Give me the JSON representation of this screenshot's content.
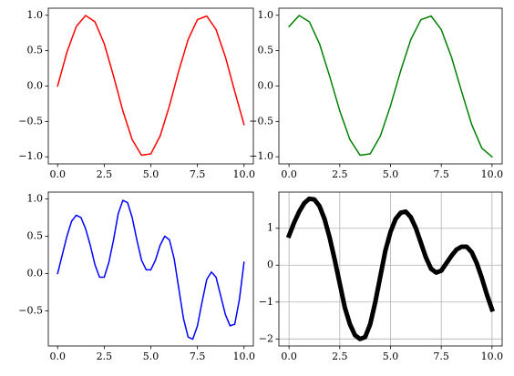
{
  "chart_data": [
    {
      "type": "line",
      "x": [
        0,
        0.5,
        1,
        1.5,
        2,
        2.5,
        3,
        3.5,
        4,
        4.5,
        5,
        5.5,
        6,
        6.5,
        7,
        7.5,
        8,
        8.5,
        9,
        9.5,
        10
      ],
      "series": [
        {
          "color": "#ff0000",
          "linewidth": 1.5,
          "values": [
            0,
            0.479,
            0.841,
            0.997,
            0.909,
            0.598,
            0.141,
            -0.351,
            -0.757,
            -0.978,
            -0.959,
            -0.706,
            -0.279,
            0.215,
            0.657,
            0.938,
            0.989,
            0.798,
            0.412,
            -0.075,
            -0.544
          ]
        }
      ],
      "xlim": [
        -0.5,
        10.5
      ],
      "ylim": [
        -1.1,
        1.1
      ],
      "xticks": [
        {
          "value": 0,
          "label": "0.0"
        },
        2.5,
        {
          "value": 5,
          "label": "5.0"
        },
        7.5,
        {
          "value": 10,
          "label": "10.0"
        }
      ],
      "yticks": [
        {
          "value": -1,
          "label": "−1.0"
        },
        {
          "value": -0.5,
          "label": "−0.5"
        },
        {
          "value": 0,
          "label": "0.0"
        },
        0.5,
        {
          "value": 1,
          "label": "1.0"
        }
      ],
      "grid": false
    },
    {
      "type": "line",
      "x": [
        0,
        0.5,
        1,
        1.5,
        2,
        2.5,
        3,
        3.5,
        4,
        4.5,
        5,
        5.5,
        6,
        6.5,
        7,
        7.5,
        8,
        8.5,
        9,
        9.5,
        10
      ],
      "series": [
        {
          "color": "#008000",
          "linewidth": 1.5,
          "values": [
            0.841,
            0.997,
            0.909,
            0.598,
            0.141,
            -0.351,
            -0.757,
            -0.978,
            -0.959,
            -0.706,
            -0.279,
            0.215,
            0.657,
            0.938,
            0.989,
            0.798,
            0.412,
            -0.075,
            -0.544,
            -0.879,
            -1.0
          ]
        }
      ],
      "xlim": [
        -0.5,
        10.5
      ],
      "ylim": [
        -1.1,
        1.1
      ],
      "xticks": [
        {
          "value": 0,
          "label": "0.0"
        },
        2.5,
        {
          "value": 5,
          "label": "5.0"
        },
        7.5,
        {
          "value": 10,
          "label": "10.0"
        }
      ],
      "yticks": [
        {
          "value": -1,
          "label": "−1.0"
        },
        {
          "value": -0.5,
          "label": "−0.5"
        },
        {
          "value": 0,
          "label": "0.0"
        },
        0.5,
        {
          "value": 1,
          "label": "1.0"
        }
      ],
      "grid": false
    },
    {
      "type": "line",
      "x": [
        0,
        0.25,
        0.5,
        0.75,
        1,
        1.25,
        1.5,
        1.75,
        2,
        2.25,
        2.5,
        2.75,
        3,
        3.25,
        3.5,
        3.75,
        4,
        4.25,
        4.5,
        4.75,
        5,
        5.25,
        5.5,
        5.75,
        6,
        6.25,
        6.5,
        6.75,
        7,
        7.25,
        7.5,
        7.75,
        8,
        8.25,
        8.5,
        8.75,
        9,
        9.25,
        9.5,
        9.75,
        10
      ],
      "series": [
        {
          "color": "#0000ff",
          "linewidth": 1.5,
          "values": [
            0,
            0.25,
            0.5,
            0.7,
            0.78,
            0.75,
            0.6,
            0.38,
            0.12,
            -0.05,
            -0.05,
            0.15,
            0.45,
            0.8,
            0.98,
            0.95,
            0.75,
            0.45,
            0.18,
            0.05,
            0.05,
            0.18,
            0.38,
            0.5,
            0.45,
            0.2,
            -0.2,
            -0.6,
            -0.85,
            -0.88,
            -0.7,
            -0.38,
            -0.08,
            0.02,
            -0.05,
            -0.3,
            -0.55,
            -0.7,
            -0.68,
            -0.35,
            0.15
          ]
        }
      ],
      "xlim": [
        -0.5,
        10.5
      ],
      "ylim": [
        -0.97,
        1.09
      ],
      "xticks": [
        {
          "value": 0,
          "label": "0.0"
        },
        2.5,
        {
          "value": 5,
          "label": "5.0"
        },
        7.5,
        {
          "value": 10,
          "label": "10.0"
        }
      ],
      "yticks": [
        {
          "value": -0.5,
          "label": "−0.5"
        },
        {
          "value": 0,
          "label": "0.0"
        },
        0.5,
        {
          "value": 1,
          "label": "1.0"
        }
      ],
      "grid": false
    },
    {
      "type": "line",
      "x": [
        0,
        0.25,
        0.5,
        0.75,
        1,
        1.25,
        1.5,
        1.75,
        2,
        2.25,
        2.5,
        2.75,
        3,
        3.25,
        3.5,
        3.75,
        4,
        4.25,
        4.5,
        4.75,
        5,
        5.25,
        5.5,
        5.75,
        6,
        6.25,
        6.5,
        6.75,
        7,
        7.25,
        7.5,
        7.75,
        8,
        8.25,
        8.5,
        8.75,
        9,
        9.25,
        9.5,
        9.75,
        10
      ],
      "series": [
        {
          "color": "#000000",
          "linewidth": 5,
          "values": [
            0.8,
            1.15,
            1.45,
            1.68,
            1.8,
            1.78,
            1.6,
            1.25,
            0.75,
            0.15,
            -0.5,
            -1.15,
            -1.6,
            -1.9,
            -2.0,
            -1.95,
            -1.6,
            -1.0,
            -0.3,
            0.4,
            0.9,
            1.25,
            1.42,
            1.45,
            1.3,
            1.0,
            0.6,
            0.2,
            -0.1,
            -0.2,
            -0.15,
            0.05,
            0.25,
            0.42,
            0.5,
            0.5,
            0.35,
            0.05,
            -0.35,
            -0.8,
            -1.2
          ]
        }
      ],
      "xlim": [
        -0.5,
        10.5
      ],
      "ylim": [
        -2.19,
        1.98
      ],
      "xticks": [
        {
          "value": 0,
          "label": "0.0"
        },
        2.5,
        {
          "value": 5,
          "label": "5.0"
        },
        7.5,
        {
          "value": 10,
          "label": "10.0"
        }
      ],
      "yticks": [
        {
          "value": -2,
          "label": "−2"
        },
        {
          "value": -1,
          "label": "−1"
        },
        0,
        1
      ],
      "grid": true
    }
  ]
}
